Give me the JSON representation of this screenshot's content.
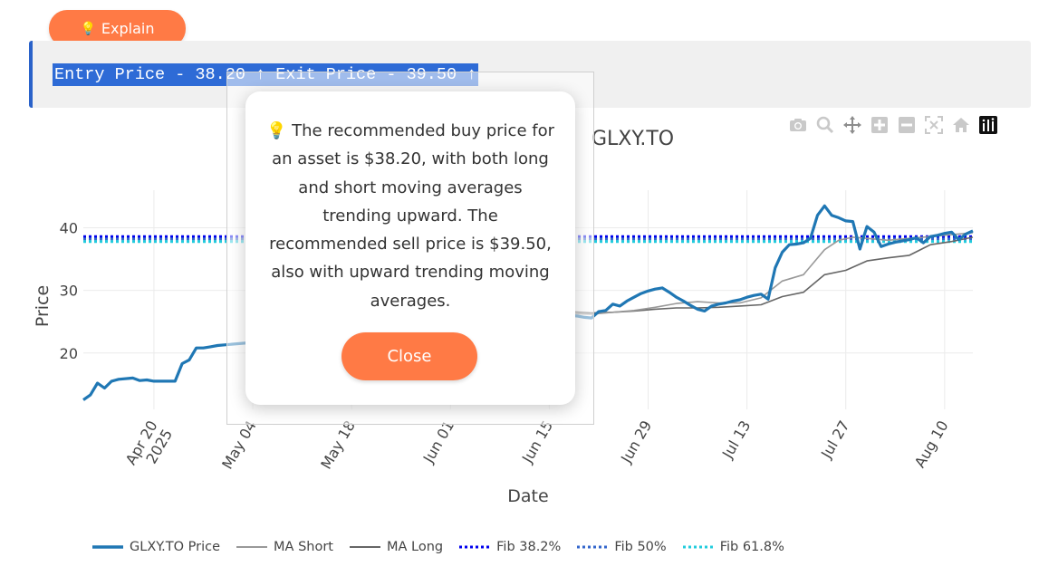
{
  "explain_button": {
    "icon": "lightbulb-icon",
    "label": "Explain"
  },
  "code_box": {
    "text": "Entry Price - 38.20 ↑ Exit Price - 39.50 ↑"
  },
  "plot": {
    "title": "GLXY.TO",
    "modebar": [
      "camera-icon",
      "zoom-icon",
      "pan-icon",
      "zoom-in-icon",
      "zoom-out-icon",
      "autoscale-icon",
      "reset-axes-icon",
      "plotly-logo-icon"
    ]
  },
  "chart_data": {
    "type": "line",
    "title": "GLXY.TO",
    "xlabel": "Date",
    "ylabel": "Price",
    "ylim": [
      11,
      46
    ],
    "x_ticks": [
      {
        "label": "Apr 20",
        "label2": "2025",
        "day": 0
      },
      {
        "label": "May 04",
        "day": 14
      },
      {
        "label": "May 18",
        "day": 28
      },
      {
        "label": "Jun 01",
        "day": 42
      },
      {
        "label": "Jun 15",
        "day": 56
      },
      {
        "label": "Jun 29",
        "day": 70
      },
      {
        "label": "Jul 13",
        "day": 84
      },
      {
        "label": "Jul 27",
        "day": 98
      },
      {
        "label": "Aug 10",
        "day": 112
      }
    ],
    "y_ticks": [
      20,
      30,
      40
    ],
    "grid": true,
    "legend_position": "bottom",
    "series": [
      {
        "name": "GLXY.TO Price",
        "color": "#1f77b4",
        "dash": "solid",
        "x": [
          -10,
          -9,
          -8,
          -7,
          -6,
          -5,
          -3,
          -2,
          -1,
          0,
          1,
          2,
          3,
          4,
          5,
          6,
          7,
          8,
          9,
          10,
          59,
          60,
          61,
          62,
          63,
          64,
          65,
          66,
          67,
          68,
          69,
          70,
          71,
          72,
          73,
          74,
          75,
          76,
          77,
          78,
          79,
          80,
          81,
          82,
          83,
          84,
          85,
          86,
          87,
          88,
          89,
          90,
          91,
          92,
          93,
          94,
          95,
          96,
          97,
          98,
          99,
          100,
          101,
          102,
          103,
          104,
          105,
          106,
          107,
          108,
          109,
          110,
          111,
          112,
          113,
          114,
          115,
          116
        ],
        "values": [
          12.5,
          13.3,
          15.2,
          14.4,
          15.5,
          15.8,
          16.0,
          15.6,
          15.7,
          15.5,
          15.5,
          15.5,
          15.5,
          18.3,
          18.9,
          20.8,
          20.8,
          21.0,
          21.2,
          21.3,
          26.0,
          25.9,
          25.7,
          25.6,
          26.6,
          26.8,
          27.8,
          27.5,
          28.3,
          28.9,
          29.5,
          29.9,
          30.2,
          30.4,
          29.7,
          28.9,
          28.3,
          27.6,
          27.0,
          26.7,
          27.5,
          27.8,
          28.0,
          28.3,
          28.5,
          28.9,
          29.2,
          29.4,
          28.6,
          33.6,
          36.1,
          37.3,
          37.4,
          37.6,
          38.3,
          42.0,
          43.5,
          42.0,
          41.6,
          41.1,
          41.0,
          36.6,
          40.2,
          39.3,
          37.0,
          37.4,
          37.7,
          37.9,
          38.1,
          38.4,
          37.6,
          38.6,
          38.8,
          39.1,
          39.3,
          38.1,
          39.0,
          39.5
        ]
      },
      {
        "name": "MA Short",
        "color": "#999999",
        "dash": "solid",
        "x": [
          59,
          62,
          65,
          68,
          71,
          74,
          77,
          80,
          83,
          86,
          89,
          92,
          95,
          97,
          99,
          101,
          104,
          107,
          110,
          113,
          116
        ],
        "values": [
          26.3,
          26.2,
          26.5,
          26.8,
          27.3,
          27.9,
          28.2,
          28.0,
          28.0,
          28.8,
          31.5,
          32.5,
          36.5,
          38.0,
          38.5,
          38.3,
          38.0,
          38.3,
          38.6,
          38.9,
          39.2
        ]
      },
      {
        "name": "MA Long",
        "color": "#666666",
        "dash": "solid",
        "x": [
          59,
          62,
          65,
          68,
          71,
          74,
          77,
          80,
          83,
          86,
          89,
          92,
          95,
          98,
          101,
          104,
          107,
          110,
          113,
          116
        ],
        "values": [
          26.6,
          26.4,
          26.5,
          26.7,
          27.0,
          27.2,
          27.2,
          27.3,
          27.5,
          27.7,
          29.0,
          29.7,
          32.5,
          33.2,
          34.7,
          35.2,
          35.6,
          37.3,
          37.8,
          38.5
        ]
      },
      {
        "name": "Fib 38.2%",
        "color": "#0000ee",
        "dash": "dot",
        "x": [
          -10,
          116
        ],
        "values": [
          38.6,
          38.6
        ]
      },
      {
        "name": "Fib 50%",
        "color": "#3366cc",
        "dash": "dot",
        "x": [
          -10,
          116
        ],
        "values": [
          38.2,
          38.2
        ]
      },
      {
        "name": "Fib 61.8%",
        "color": "#22ccdd",
        "dash": "dot",
        "x": [
          -10,
          116
        ],
        "values": [
          37.8,
          37.8
        ]
      }
    ]
  },
  "modal": {
    "text": "The recommended buy price for an asset is $38.20, with both long and short moving averages trending upward. The recommended sell price is $39.50, also with upward trending moving averages.",
    "icon": "lightbulb-icon",
    "close_label": "Close"
  }
}
